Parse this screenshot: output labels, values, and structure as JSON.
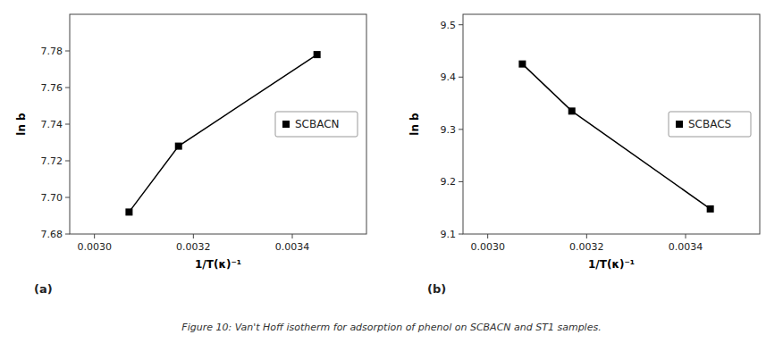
{
  "chart_data": [
    {
      "type": "line",
      "xlabel": "1/T(κ)⁻¹",
      "ylabel": "ln b",
      "annotations": [
        "(a)"
      ],
      "x": [
        0.00307,
        0.00317,
        0.00345
      ],
      "series": [
        {
          "name": "SCBACN",
          "color": "#000000",
          "marker": "square",
          "values": [
            7.692,
            7.728,
            7.778
          ]
        }
      ],
      "xlim": [
        0.00295,
        0.00355
      ],
      "xticks": [
        {
          "value": 0.003,
          "label": "0.0030"
        },
        {
          "value": 0.0032,
          "label": "0.0032"
        },
        {
          "value": 0.0034,
          "label": "0.0034"
        }
      ],
      "ylim": [
        7.68,
        7.8
      ],
      "yticks": [
        7.68,
        {
          "value": 7.7,
          "label": "7.70"
        },
        7.72,
        7.74,
        7.76,
        7.78
      ],
      "legend": "right",
      "grid": false
    },
    {
      "type": "line",
      "xlabel": "1/T(κ)⁻¹",
      "ylabel": "ln b",
      "annotations": [
        "(b)"
      ],
      "x": [
        0.00307,
        0.00317,
        0.00345
      ],
      "series": [
        {
          "name": "SCBACS",
          "color": "#000000",
          "marker": "square",
          "values": [
            9.425,
            9.335,
            9.148
          ]
        }
      ],
      "xlim": [
        0.00295,
        0.00355
      ],
      "xticks": [
        {
          "value": 0.003,
          "label": "0.0030"
        },
        {
          "value": 0.0032,
          "label": "0.0032"
        },
        {
          "value": 0.0034,
          "label": "0.0034"
        }
      ],
      "ylim": [
        9.1,
        9.52
      ],
      "yticks": [
        9.1,
        9.2,
        9.3,
        9.4,
        9.5
      ],
      "legend": "right",
      "grid": false
    }
  ],
  "caption": "Figure 10: Van't Hoff isotherm for adsorption of phenol on SCBACN and ST1 samples."
}
